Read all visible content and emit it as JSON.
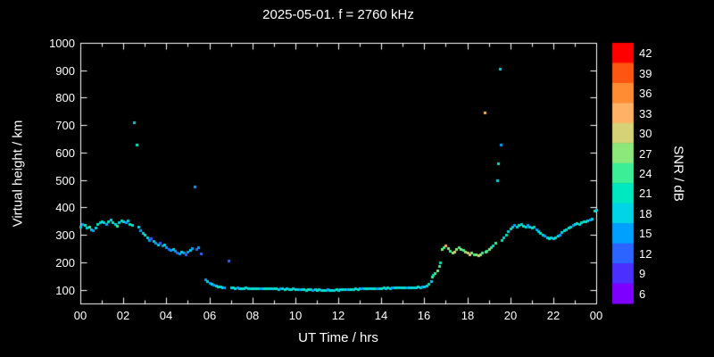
{
  "title": "2025-05-01. f = 2760 kHz",
  "chart_data": {
    "type": "scatter",
    "title": "2025-05-01. f = 2760 kHz",
    "xlabel": "UT Time / hrs",
    "ylabel": "Virtual height / km",
    "colorbar_label": "SNR / dB",
    "xlim": [
      0,
      24
    ],
    "ylim": [
      50,
      1000
    ],
    "x_tick_values": [
      0,
      2,
      4,
      6,
      8,
      10,
      12,
      14,
      16,
      18,
      20,
      22,
      24
    ],
    "x_tick_labels": [
      "00",
      "02",
      "04",
      "06",
      "08",
      "10",
      "12",
      "14",
      "16",
      "18",
      "20",
      "22",
      "00"
    ],
    "y_ticks": [
      100,
      200,
      300,
      400,
      500,
      600,
      700,
      800,
      900,
      1000
    ],
    "snr_ticks": [
      6,
      9,
      12,
      15,
      18,
      21,
      24,
      27,
      30,
      33,
      36,
      39,
      42
    ],
    "snr_range": [
      4.5,
      43.5
    ],
    "background": "#000000",
    "axis_color": "#ffffff",
    "palette": {
      "6": "#7d00ff",
      "9": "#4b2fff",
      "12": "#2b64ff",
      "15": "#00a0ff",
      "18": "#00d4e6",
      "21": "#00e8c0",
      "24": "#3cee96",
      "27": "#8ce87a",
      "30": "#d6d278",
      "33": "#ffb266",
      "36": "#ff8c33",
      "39": "#ff5512",
      "42": "#ff0000"
    },
    "points": [
      [
        0.0,
        330,
        18
      ],
      [
        0.1,
        340,
        15
      ],
      [
        0.2,
        335,
        21
      ],
      [
        0.3,
        325,
        18
      ],
      [
        0.4,
        330,
        24
      ],
      [
        0.5,
        320,
        18
      ],
      [
        0.6,
        318,
        15
      ],
      [
        0.7,
        325,
        18
      ],
      [
        0.8,
        338,
        21
      ],
      [
        0.9,
        345,
        18
      ],
      [
        1.0,
        350,
        21
      ],
      [
        1.1,
        345,
        18
      ],
      [
        1.2,
        338,
        15
      ],
      [
        1.3,
        348,
        21
      ],
      [
        1.4,
        355,
        18
      ],
      [
        1.5,
        345,
        21
      ],
      [
        1.6,
        340,
        18
      ],
      [
        1.7,
        332,
        24
      ],
      [
        1.8,
        345,
        18
      ],
      [
        1.9,
        352,
        21
      ],
      [
        2.0,
        350,
        18
      ],
      [
        2.1,
        345,
        15
      ],
      [
        2.2,
        352,
        18
      ],
      [
        2.3,
        340,
        21
      ],
      [
        2.4,
        335,
        18
      ],
      [
        2.5,
        710,
        18
      ],
      [
        2.6,
        628,
        21
      ],
      [
        2.7,
        330,
        18
      ],
      [
        2.8,
        318,
        15
      ],
      [
        2.9,
        308,
        18
      ],
      [
        3.0,
        300,
        21
      ],
      [
        3.1,
        292,
        18
      ],
      [
        3.2,
        282,
        15
      ],
      [
        3.3,
        286,
        12
      ],
      [
        3.4,
        278,
        18
      ],
      [
        3.5,
        272,
        15
      ],
      [
        3.6,
        265,
        18
      ],
      [
        3.7,
        270,
        12
      ],
      [
        3.8,
        262,
        15
      ],
      [
        3.9,
        266,
        18
      ],
      [
        4.0,
        256,
        15
      ],
      [
        4.1,
        250,
        12
      ],
      [
        4.2,
        246,
        15
      ],
      [
        4.3,
        250,
        18
      ],
      [
        4.4,
        242,
        15
      ],
      [
        4.5,
        236,
        12
      ],
      [
        4.6,
        232,
        15
      ],
      [
        4.7,
        240,
        18
      ],
      [
        4.8,
        236,
        15
      ],
      [
        4.9,
        230,
        12
      ],
      [
        5.0,
        240,
        15
      ],
      [
        5.1,
        246,
        18
      ],
      [
        5.2,
        252,
        15
      ],
      [
        5.3,
        475,
        15
      ],
      [
        5.4,
        250,
        12
      ],
      [
        5.5,
        256,
        15
      ],
      [
        5.6,
        232,
        12
      ],
      [
        5.8,
        138,
        15
      ],
      [
        5.9,
        130,
        18
      ],
      [
        6.0,
        126,
        15
      ],
      [
        6.1,
        122,
        18
      ],
      [
        6.2,
        118,
        15
      ],
      [
        6.3,
        116,
        18
      ],
      [
        6.4,
        113,
        21
      ],
      [
        6.5,
        112,
        18
      ],
      [
        6.6,
        110,
        18
      ],
      [
        6.7,
        110,
        15
      ],
      [
        6.9,
        205,
        12
      ],
      [
        7.0,
        108,
        18
      ],
      [
        7.1,
        107,
        21
      ],
      [
        7.2,
        106,
        18
      ],
      [
        7.3,
        107,
        15
      ],
      [
        7.4,
        105,
        18
      ],
      [
        7.5,
        106,
        21
      ],
      [
        7.6,
        105,
        18
      ],
      [
        7.7,
        107,
        18
      ],
      [
        7.8,
        106,
        21
      ],
      [
        7.9,
        105,
        18
      ],
      [
        8.0,
        106,
        21
      ],
      [
        8.1,
        105,
        18
      ],
      [
        8.2,
        104,
        21
      ],
      [
        8.3,
        106,
        18
      ],
      [
        8.4,
        105,
        15
      ],
      [
        8.5,
        104,
        18
      ],
      [
        8.6,
        105,
        21
      ],
      [
        8.7,
        106,
        18
      ],
      [
        8.8,
        104,
        21
      ],
      [
        8.9,
        105,
        18
      ],
      [
        9.0,
        104,
        18
      ],
      [
        9.1,
        105,
        21
      ],
      [
        9.2,
        103,
        18
      ],
      [
        9.3,
        104,
        15
      ],
      [
        9.4,
        105,
        18
      ],
      [
        9.5,
        103,
        21
      ],
      [
        9.6,
        104,
        18
      ],
      [
        9.7,
        102,
        18
      ],
      [
        9.8,
        103,
        21
      ],
      [
        9.9,
        104,
        18
      ],
      [
        10.0,
        103,
        21
      ],
      [
        10.1,
        102,
        18
      ],
      [
        10.2,
        103,
        15
      ],
      [
        10.3,
        101,
        18
      ],
      [
        10.4,
        102,
        21
      ],
      [
        10.5,
        100,
        18
      ],
      [
        10.6,
        101,
        21
      ],
      [
        10.7,
        102,
        18
      ],
      [
        10.8,
        100,
        15
      ],
      [
        10.9,
        101,
        18
      ],
      [
        11.0,
        100,
        21
      ],
      [
        11.1,
        101,
        18
      ],
      [
        11.2,
        100,
        18
      ],
      [
        11.3,
        99,
        21
      ],
      [
        11.4,
        100,
        18
      ],
      [
        11.5,
        101,
        15
      ],
      [
        11.6,
        100,
        18
      ],
      [
        11.7,
        99,
        21
      ],
      [
        11.8,
        100,
        18
      ],
      [
        11.9,
        101,
        21
      ],
      [
        12.0,
        100,
        18
      ],
      [
        12.1,
        101,
        18
      ],
      [
        12.2,
        102,
        21
      ],
      [
        12.3,
        101,
        18
      ],
      [
        12.4,
        102,
        15
      ],
      [
        12.5,
        103,
        18
      ],
      [
        12.6,
        102,
        21
      ],
      [
        12.7,
        103,
        18
      ],
      [
        12.8,
        104,
        18
      ],
      [
        12.9,
        103,
        21
      ],
      [
        13.0,
        104,
        18
      ],
      [
        13.1,
        105,
        15
      ],
      [
        13.2,
        104,
        18
      ],
      [
        13.3,
        105,
        21
      ],
      [
        13.4,
        104,
        18
      ],
      [
        13.5,
        105,
        18
      ],
      [
        13.6,
        106,
        21
      ],
      [
        13.7,
        105,
        18
      ],
      [
        13.8,
        106,
        15
      ],
      [
        13.9,
        105,
        18
      ],
      [
        14.0,
        106,
        21
      ],
      [
        14.1,
        107,
        18
      ],
      [
        14.2,
        106,
        18
      ],
      [
        14.3,
        107,
        21
      ],
      [
        14.4,
        106,
        18
      ],
      [
        14.5,
        107,
        15
      ],
      [
        14.6,
        108,
        18
      ],
      [
        14.7,
        107,
        21
      ],
      [
        14.8,
        108,
        18
      ],
      [
        14.9,
        107,
        18
      ],
      [
        15.0,
        108,
        21
      ],
      [
        15.1,
        109,
        18
      ],
      [
        15.2,
        108,
        15
      ],
      [
        15.3,
        109,
        18
      ],
      [
        15.4,
        110,
        21
      ],
      [
        15.5,
        109,
        18
      ],
      [
        15.6,
        110,
        18
      ],
      [
        15.7,
        111,
        21
      ],
      [
        15.8,
        110,
        18
      ],
      [
        15.9,
        112,
        15
      ],
      [
        16.0,
        113,
        18
      ],
      [
        16.1,
        116,
        18
      ],
      [
        16.2,
        122,
        21
      ],
      [
        16.3,
        132,
        18
      ],
      [
        16.35,
        148,
        24
      ],
      [
        16.4,
        155,
        21
      ],
      [
        16.5,
        162,
        24
      ],
      [
        16.6,
        172,
        27
      ],
      [
        16.7,
        186,
        24
      ],
      [
        16.75,
        200,
        21
      ],
      [
        16.8,
        248,
        27
      ],
      [
        16.9,
        255,
        24
      ],
      [
        17.0,
        260,
        33
      ],
      [
        17.1,
        252,
        27
      ],
      [
        17.2,
        242,
        24
      ],
      [
        17.3,
        236,
        27
      ],
      [
        17.4,
        240,
        30
      ],
      [
        17.5,
        250,
        27
      ],
      [
        17.6,
        256,
        24
      ],
      [
        17.7,
        250,
        27
      ],
      [
        17.8,
        246,
        24
      ],
      [
        17.9,
        240,
        27
      ],
      [
        18.0,
        236,
        33
      ],
      [
        18.1,
        230,
        30
      ],
      [
        18.2,
        234,
        27
      ],
      [
        18.3,
        230,
        24
      ],
      [
        18.4,
        228,
        27
      ],
      [
        18.5,
        226,
        30
      ],
      [
        18.6,
        230,
        27
      ],
      [
        18.7,
        236,
        24
      ],
      [
        18.8,
        745,
        33
      ],
      [
        18.85,
        240,
        27
      ],
      [
        18.9,
        242,
        24
      ],
      [
        19.0,
        250,
        27
      ],
      [
        19.1,
        256,
        24
      ],
      [
        19.2,
        262,
        21
      ],
      [
        19.3,
        272,
        24
      ],
      [
        19.4,
        500,
        18
      ],
      [
        19.45,
        560,
        21
      ],
      [
        19.5,
        905,
        18
      ],
      [
        19.55,
        630,
        15
      ],
      [
        19.6,
        282,
        21
      ],
      [
        19.7,
        292,
        18
      ],
      [
        19.8,
        302,
        21
      ],
      [
        19.9,
        312,
        18
      ],
      [
        20.0,
        322,
        21
      ],
      [
        20.1,
        330,
        18
      ],
      [
        20.2,
        336,
        15
      ],
      [
        20.3,
        330,
        18
      ],
      [
        20.4,
        336,
        21
      ],
      [
        20.5,
        340,
        18
      ],
      [
        20.6,
        334,
        21
      ],
      [
        20.7,
        330,
        18
      ],
      [
        20.8,
        336,
        15
      ],
      [
        20.9,
        330,
        18
      ],
      [
        21.0,
        326,
        21
      ],
      [
        21.1,
        330,
        18
      ],
      [
        21.2,
        320,
        15
      ],
      [
        21.3,
        312,
        18
      ],
      [
        21.4,
        306,
        21
      ],
      [
        21.5,
        300,
        18
      ],
      [
        21.6,
        296,
        15
      ],
      [
        21.7,
        290,
        18
      ],
      [
        21.8,
        286,
        21
      ],
      [
        21.9,
        290,
        18
      ],
      [
        22.0,
        286,
        18
      ],
      [
        22.1,
        290,
        21
      ],
      [
        22.2,
        296,
        18
      ],
      [
        22.3,
        302,
        15
      ],
      [
        22.4,
        310,
        18
      ],
      [
        22.5,
        316,
        21
      ],
      [
        22.6,
        320,
        18
      ],
      [
        22.7,
        326,
        21
      ],
      [
        22.8,
        330,
        18
      ],
      [
        22.9,
        336,
        15
      ],
      [
        23.0,
        340,
        18
      ],
      [
        23.1,
        344,
        21
      ],
      [
        23.2,
        340,
        18
      ],
      [
        23.3,
        346,
        21
      ],
      [
        23.4,
        350,
        18
      ],
      [
        23.5,
        350,
        21
      ],
      [
        23.6,
        354,
        18
      ],
      [
        23.7,
        356,
        15
      ],
      [
        23.8,
        360,
        18
      ],
      [
        23.9,
        388,
        21
      ],
      [
        24.0,
        392,
        18
      ]
    ]
  }
}
